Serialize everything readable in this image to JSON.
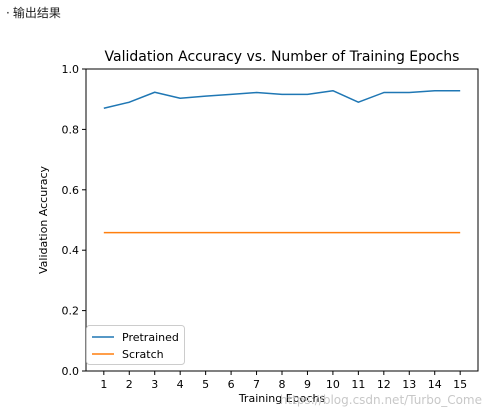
{
  "header": {
    "bullet": "·",
    "text": "输出结果"
  },
  "watermark": "https://blog.csdn.net/Turbo_Come",
  "colors": {
    "pretrained": "#1f77b4",
    "scratch": "#ff7f0e"
  },
  "chart_data": {
    "type": "line",
    "title": "Validation Accuracy vs. Number of Training Epochs",
    "xlabel": "Training Epochs",
    "ylabel": "Validation Accuracy",
    "x": [
      1,
      2,
      3,
      4,
      5,
      6,
      7,
      8,
      9,
      10,
      11,
      12,
      13,
      14,
      15
    ],
    "xticks": [
      1,
      2,
      3,
      4,
      5,
      6,
      7,
      8,
      9,
      10,
      11,
      12,
      13,
      14,
      15
    ],
    "xlim": [
      0.3,
      15.7
    ],
    "ylim": [
      0.0,
      1.0
    ],
    "yticks": [
      "0.0",
      "0.2",
      "0.4",
      "0.6",
      "0.8",
      "1.0"
    ],
    "grid": false,
    "legend_position": "lower-left",
    "series": [
      {
        "name": "Pretrained",
        "values": [
          0.87,
          0.89,
          0.923,
          0.903,
          0.91,
          0.916,
          0.922,
          0.916,
          0.916,
          0.928,
          0.89,
          0.922,
          0.922,
          0.928,
          0.928
        ]
      },
      {
        "name": "Scratch",
        "values": [
          0.458,
          0.458,
          0.458,
          0.458,
          0.458,
          0.458,
          0.458,
          0.458,
          0.458,
          0.458,
          0.458,
          0.458,
          0.458,
          0.458,
          0.458
        ]
      }
    ]
  }
}
